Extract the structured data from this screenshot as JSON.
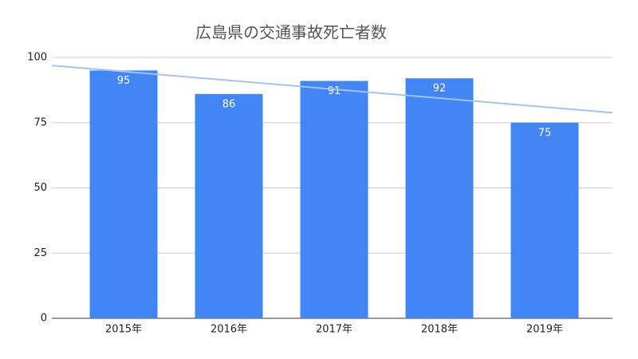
{
  "chart_data": {
    "type": "bar",
    "title": "広島県の交通事故死亡者数",
    "categories": [
      "2015年",
      "2016年",
      "2017年",
      "2018年",
      "2019年"
    ],
    "values": [
      95,
      86,
      91,
      92,
      75
    ],
    "color": "#4285f4",
    "ylim": [
      0,
      100
    ],
    "yticks": [
      0,
      25,
      50,
      75,
      100
    ],
    "grid": true,
    "trendline": true,
    "trendline_color": "#a4c2f4"
  }
}
